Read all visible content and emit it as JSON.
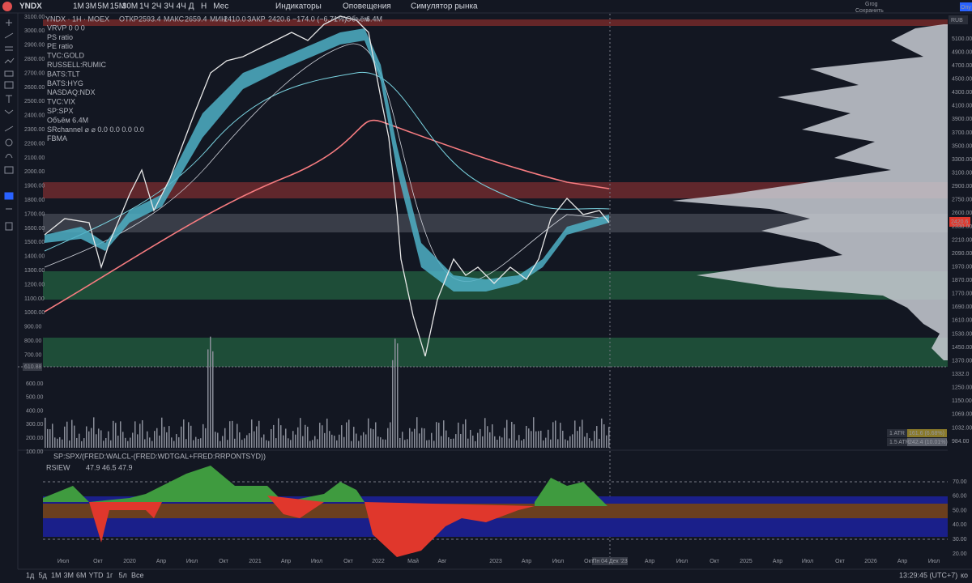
{
  "toolbar": {
    "symbol": "YNDX",
    "intervals": [
      "1М",
      "3М",
      "5М",
      "15М",
      "30М",
      "1Ч",
      "2Ч",
      "3Ч",
      "4Ч",
      "Д",
      "Н",
      "Мес"
    ],
    "indicators": "Индикаторы",
    "alerts": "Оповещения",
    "replay": "Симулятор рынка",
    "user": "Grog",
    "save": "Сохранить",
    "publish": "Опу"
  },
  "legend": {
    "title": "YNDX · 1Н · MOEX",
    "open_label": "ОТКР",
    "open": "2593.4",
    "high_label": "МАКС",
    "high": "2659.4",
    "low_label": "МИН",
    "low": "2410.0",
    "close_label": "ЗАКР",
    "close": "2420.6",
    "change": "−174.0 (−6.71%)",
    "volume_label": "Объём",
    "volume": "6.4M",
    "indicators": [
      "VRVP 0 0 0",
      "PS ratio",
      "PE ratio",
      "TVC:GOLD",
      "RUSSELL:RUMIC",
      "BATS:TLT",
      "BATS:HYG",
      "NASDAQ:NDX",
      "TVC:VIX",
      "SP:SPX",
      "Объём 6.4M",
      "SRchannel ⌀ ⌀ 0.0 0.0 0.0 0.0",
      "FBMA"
    ]
  },
  "price_axis_left": [
    "3100.00",
    "3000.00",
    "2900.00",
    "2800.00",
    "2700.00",
    "2600.00",
    "2500.00",
    "2400.00",
    "2300.00",
    "2200.00",
    "2100.00",
    "2000.00",
    "1900.00",
    "1800.00",
    "1700.00",
    "1600.00",
    "1500.00",
    "1400.00",
    "1300.00",
    "1200.00",
    "1100.00",
    "1000.00",
    "900.00",
    "800.00",
    "700.00"
  ],
  "low_label": "610.88",
  "volume_axis": [
    "600.00",
    "500.00",
    "400.00",
    "300.00",
    "200.00",
    "100.00"
  ],
  "price_axis_right": {
    "currency": "RUB",
    "labels": [
      "5100.00",
      "4900.00",
      "4700.00",
      "4500.00",
      "4300.00",
      "4100.00",
      "3900.00",
      "3700.00",
      "3500.00",
      "3300.00",
      "3100.00",
      "2900.00",
      "2750.00",
      "2600.00",
      "2330.00",
      "2210.00",
      "2090.00",
      "1970.00",
      "1870.00",
      "1770.00",
      "1690.00",
      "1610.00",
      "1530.00",
      "1450.00",
      "1370.00",
      "1332.0",
      "1250.00",
      "1150.00",
      "1069.00",
      "1032.00",
      "984.00"
    ],
    "last": "2420.6"
  },
  "atr": [
    {
      "label": "1 ATR",
      "value": "161.6 (6.68%)"
    },
    {
      "label": "1.5 ATR",
      "value": "242.4 (10.01%)"
    }
  ],
  "sub_pane": {
    "title": "SP:SPX/(FRED:WALCL-(FRED:WDTGAL+FRED:RRPONTSYD))",
    "indicator": "RSIEW",
    "values": "47.9 46.5 47.9",
    "axis": [
      "70.00",
      "60.00",
      "50.00",
      "40.00",
      "30.00",
      "20.00"
    ]
  },
  "time_axis": [
    "Июл",
    "Окт",
    "2020",
    "Апр",
    "Июл",
    "Окт",
    "2021",
    "Апр",
    "Июл",
    "Окт",
    "2022",
    "Май",
    "Авг",
    "2023",
    "Апр",
    "Июл",
    "Окт",
    "Пн 04 Дек '23",
    "Апр",
    "Июл",
    "Окт",
    "2025",
    "Апр",
    "Июл",
    "Окт",
    "2026",
    "Апр",
    "Июл"
  ],
  "bottom_bar": {
    "ranges": [
      "1д",
      "5д",
      "1М",
      "3М",
      "6М",
      "YTD",
      "1г",
      "5л",
      "Все"
    ],
    "clock": "13:29:45 (UTC+7)",
    "extra": "ко"
  }
}
